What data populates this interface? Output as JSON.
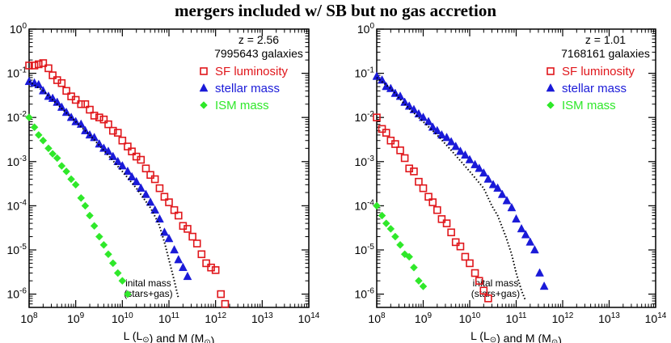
{
  "title": "mergers included w/ SB but no gas accretion",
  "colors": {
    "sf": "#e0161b",
    "stellar": "#1a1ad8",
    "ism": "#2fe82a",
    "axis": "#000000"
  },
  "chart_data": [
    {
      "type": "scatter",
      "id": "left",
      "xscale": "log",
      "yscale": "log",
      "xlim": [
        100000000.0,
        100000000000000.0
      ],
      "ylim": [
        5e-07,
        1
      ],
      "xlabel_parts": [
        "L (L",
        ") and M (M",
        ")"
      ],
      "xticks": [
        "10^8",
        "10^9",
        "10^10",
        "10^11",
        "10^12",
        "10^13",
        "10^14"
      ],
      "yticks": [
        "10^0",
        "10^-1",
        "10^-2",
        "10^-3",
        "10^-4",
        "10^-5",
        "10^-6"
      ],
      "info": {
        "redshift": "z = 2.56",
        "count": "7995643 galaxies"
      },
      "annotation": {
        "line1": "inital mass",
        "line2": "(stars+gas)"
      },
      "series": [
        {
          "name": "SF luminosity",
          "marker": "square",
          "color_key": "sf",
          "points": [
            [
              100000000.0,
              0.15
            ],
            [
              130000000.0,
              0.15
            ],
            [
              160000000.0,
              0.16
            ],
            [
              200000000.0,
              0.17
            ],
            [
              260000000.0,
              0.13
            ],
            [
              320000000.0,
              0.09
            ],
            [
              400000000.0,
              0.07
            ],
            [
              500000000.0,
              0.06
            ],
            [
              630000000.0,
              0.04
            ],
            [
              800000000.0,
              0.03
            ],
            [
              1000000000.0,
              0.025
            ],
            [
              1300000000.0,
              0.02
            ],
            [
              1600000000.0,
              0.02
            ],
            [
              2000000000.0,
              0.015
            ],
            [
              2500000000.0,
              0.011
            ],
            [
              3200000000.0,
              0.01
            ],
            [
              4000000000.0,
              0.009
            ],
            [
              5000000000.0,
              0.007
            ],
            [
              6300000000.0,
              0.005
            ],
            [
              8000000000.0,
              0.0045
            ],
            [
              10000000000.0,
              0.003
            ],
            [
              13000000000.0,
              0.0022
            ],
            [
              16000000000.0,
              0.0017
            ],
            [
              20000000000.0,
              0.0013
            ],
            [
              25000000000.0,
              0.0011
            ],
            [
              32000000000.0,
              0.0007
            ],
            [
              40000000000.0,
              0.0005
            ],
            [
              50000000000.0,
              0.0004
            ],
            [
              63000000000.0,
              0.00025
            ],
            [
              80000000000.0,
              0.00016
            ],
            [
              100000000000.0,
              0.00012
            ],
            [
              130000000000.0,
              8e-05
            ],
            [
              160000000000.0,
              6e-05
            ],
            [
              200000000000.0,
              3.5e-05
            ],
            [
              250000000000.0,
              3e-05
            ],
            [
              320000000000.0,
              2e-05
            ],
            [
              400000000000.0,
              1.4e-05
            ],
            [
              500000000000.0,
              8e-06
            ],
            [
              630000000000.0,
              5e-06
            ],
            [
              800000000000.0,
              4e-06
            ],
            [
              1000000000000.0,
              3.5e-06
            ],
            [
              1300000000000.0,
              1e-06
            ],
            [
              1600000000000.0,
              6e-07
            ]
          ]
        },
        {
          "name": "stellar mass",
          "marker": "triangle",
          "color_key": "stellar",
          "points": [
            [
              100000000.0,
              0.065
            ],
            [
              130000000.0,
              0.06
            ],
            [
              160000000.0,
              0.055
            ],
            [
              200000000.0,
              0.04
            ],
            [
              260000000.0,
              0.03
            ],
            [
              320000000.0,
              0.027
            ],
            [
              400000000.0,
              0.022
            ],
            [
              500000000.0,
              0.017
            ],
            [
              630000000.0,
              0.013
            ],
            [
              800000000.0,
              0.01
            ],
            [
              1000000000.0,
              0.008
            ],
            [
              1300000000.0,
              0.007
            ],
            [
              1600000000.0,
              0.005
            ],
            [
              2000000000.0,
              0.004
            ],
            [
              2500000000.0,
              0.0035
            ],
            [
              3200000000.0,
              0.0025
            ],
            [
              4000000000.0,
              0.002
            ],
            [
              5000000000.0,
              0.0017
            ],
            [
              6300000000.0,
              0.0013
            ],
            [
              8000000000.0,
              0.001
            ],
            [
              10000000000.0,
              0.0008
            ],
            [
              13000000000.0,
              0.0006
            ],
            [
              16000000000.0,
              0.00045
            ],
            [
              20000000000.0,
              0.00035
            ],
            [
              25000000000.0,
              0.00025
            ],
            [
              32000000000.0,
              0.00018
            ],
            [
              40000000000.0,
              0.00012
            ],
            [
              50000000000.0,
              8e-05
            ],
            [
              63000000000.0,
              5e-05
            ],
            [
              80000000000.0,
              2.5e-05
            ],
            [
              100000000000.0,
              1.8e-05
            ],
            [
              130000000000.0,
              1e-05
            ],
            [
              160000000000.0,
              6e-06
            ],
            [
              200000000000.0,
              4e-06
            ],
            [
              250000000000.0,
              2.5e-06
            ]
          ]
        },
        {
          "name": "ISM mass",
          "marker": "diamond",
          "color_key": "ism",
          "points": [
            [
              100000000.0,
              0.01
            ],
            [
              130000000.0,
              0.006
            ],
            [
              160000000.0,
              0.004
            ],
            [
              200000000.0,
              0.003
            ],
            [
              260000000.0,
              0.002
            ],
            [
              320000000.0,
              0.0015
            ],
            [
              400000000.0,
              0.0012
            ],
            [
              500000000.0,
              0.0008
            ],
            [
              630000000.0,
              0.0006
            ],
            [
              800000000.0,
              0.0004
            ],
            [
              1000000000.0,
              0.0003
            ],
            [
              1300000000.0,
              0.00015
            ],
            [
              1600000000.0,
              0.0001
            ],
            [
              2000000000.0,
              6e-05
            ],
            [
              2500000000.0,
              3.5e-05
            ],
            [
              3200000000.0,
              2e-05
            ],
            [
              4000000000.0,
              1.3e-05
            ],
            [
              5000000000.0,
              8e-06
            ],
            [
              6300000000.0,
              5e-06
            ],
            [
              8000000000.0,
              3e-06
            ],
            [
              10000000000.0,
              2e-06
            ],
            [
              13000000000.0,
              1e-06
            ]
          ]
        },
        {
          "name": "inital mass (stars+gas)",
          "marker": "dotted-line",
          "color_key": "axis",
          "points": [
            [
              100000000.0,
              0.065
            ],
            [
              200000000.0,
              0.04
            ],
            [
              400000000.0,
              0.02
            ],
            [
              1000000000.0,
              0.008
            ],
            [
              2000000000.0,
              0.004
            ],
            [
              4000000000.0,
              0.0018
            ],
            [
              10000000000.0,
              0.0006
            ],
            [
              20000000000.0,
              0.00025
            ],
            [
              40000000000.0,
              9e-05
            ],
            [
              60000000000.0,
              4e-05
            ],
            [
              80000000000.0,
              1.5e-05
            ],
            [
              100000000000.0,
              6e-06
            ],
            [
              130000000000.0,
              2e-06
            ],
            [
              160000000000.0,
              8e-07
            ]
          ]
        }
      ]
    },
    {
      "type": "scatter",
      "id": "right",
      "xscale": "log",
      "yscale": "log",
      "xlim": [
        100000000.0,
        100000000000000.0
      ],
      "ylim": [
        5e-07,
        1
      ],
      "xlabel_parts": [
        "L (L",
        ") and M (M",
        ")"
      ],
      "xticks": [
        "10^8",
        "10^9",
        "10^10",
        "10^11",
        "10^12",
        "10^13",
        "10^14"
      ],
      "yticks": [
        "10^0",
        "10^-1",
        "10^-2",
        "10^-3",
        "10^-4",
        "10^-5",
        "10^-6"
      ],
      "info": {
        "redshift": "z = 1.01",
        "count": "7168161 galaxies"
      },
      "annotation": {
        "line1": "inital mass",
        "line2": "(stars+gas)"
      },
      "series": [
        {
          "name": "SF luminosity",
          "marker": "square",
          "color_key": "sf",
          "points": [
            [
              100000000.0,
              0.01
            ],
            [
              130000000.0,
              0.0055
            ],
            [
              160000000.0,
              0.0045
            ],
            [
              200000000.0,
              0.003
            ],
            [
              250000000.0,
              0.0025
            ],
            [
              320000000.0,
              0.0018
            ],
            [
              400000000.0,
              0.0012
            ],
            [
              500000000.0,
              0.0007
            ],
            [
              630000000.0,
              0.0006
            ],
            [
              800000000.0,
              0.00035
            ],
            [
              1000000000.0,
              0.00025
            ],
            [
              1300000000.0,
              0.00016
            ],
            [
              1600000000.0,
              0.00012
            ],
            [
              2000000000.0,
              8e-05
            ],
            [
              2500000000.0,
              5e-05
            ],
            [
              3200000000.0,
              4e-05
            ],
            [
              4000000000.0,
              2.5e-05
            ],
            [
              5000000000.0,
              1.5e-05
            ],
            [
              6300000000.0,
              1.2e-05
            ],
            [
              8000000000.0,
              7e-06
            ],
            [
              10000000000.0,
              5e-06
            ],
            [
              13000000000.0,
              3e-06
            ],
            [
              16000000000.0,
              2e-06
            ],
            [
              20000000000.0,
              1.2e-06
            ],
            [
              25000000000.0,
              8e-07
            ]
          ]
        },
        {
          "name": "stellar mass",
          "marker": "triangle",
          "color_key": "stellar",
          "points": [
            [
              100000000.0,
              0.085
            ],
            [
              130000000.0,
              0.07
            ],
            [
              160000000.0,
              0.05
            ],
            [
              200000000.0,
              0.045
            ],
            [
              250000000.0,
              0.035
            ],
            [
              320000000.0,
              0.03
            ],
            [
              400000000.0,
              0.022
            ],
            [
              500000000.0,
              0.018
            ],
            [
              630000000.0,
              0.015
            ],
            [
              800000000.0,
              0.012
            ],
            [
              1000000000.0,
              0.01
            ],
            [
              1300000000.0,
              0.008
            ],
            [
              1600000000.0,
              0.006
            ],
            [
              2000000000.0,
              0.005
            ],
            [
              2500000000.0,
              0.004
            ],
            [
              3200000000.0,
              0.0035
            ],
            [
              4000000000.0,
              0.0028
            ],
            [
              5000000000.0,
              0.0022
            ],
            [
              6300000000.0,
              0.0017
            ],
            [
              8000000000.0,
              0.0014
            ],
            [
              10000000000.0,
              0.0011
            ],
            [
              13000000000.0,
              0.00085
            ],
            [
              16000000000.0,
              0.0007
            ],
            [
              20000000000.0,
              0.00055
            ],
            [
              25000000000.0,
              0.0004
            ],
            [
              32000000000.0,
              0.0003
            ],
            [
              40000000000.0,
              0.00025
            ],
            [
              50000000000.0,
              0.00018
            ],
            [
              63000000000.0,
              0.00013
            ],
            [
              80000000000.0,
              9e-05
            ],
            [
              100000000000.0,
              5e-05
            ],
            [
              130000000000.0,
              3e-05
            ],
            [
              160000000000.0,
              2.2e-05
            ],
            [
              200000000000.0,
              1.5e-05
            ],
            [
              250000000000.0,
              1e-05
            ],
            [
              320000000000.0,
              3e-06
            ],
            [
              400000000000.0,
              1.5e-06
            ]
          ]
        },
        {
          "name": "ISM mass",
          "marker": "diamond",
          "color_key": "ism",
          "points": [
            [
              100000000.0,
              0.0001
            ],
            [
              130000000.0,
              6e-05
            ],
            [
              160000000.0,
              4e-05
            ],
            [
              200000000.0,
              3e-05
            ],
            [
              250000000.0,
              2e-05
            ],
            [
              320000000.0,
              1.3e-05
            ],
            [
              400000000.0,
              8e-06
            ],
            [
              500000000.0,
              7e-06
            ],
            [
              630000000.0,
              4e-06
            ],
            [
              800000000.0,
              2e-06
            ],
            [
              1000000000.0,
              1.5e-06
            ]
          ]
        },
        {
          "name": "inital mass (stars+gas)",
          "marker": "dotted-line",
          "color_key": "axis",
          "points": [
            [
              100000000.0,
              0.08
            ],
            [
              200000000.0,
              0.045
            ],
            [
              400000000.0,
              0.02
            ],
            [
              1000000000.0,
              0.008
            ],
            [
              2000000000.0,
              0.004
            ],
            [
              4000000000.0,
              0.0018
            ],
            [
              10000000000.0,
              0.0006
            ],
            [
              20000000000.0,
              0.00025
            ],
            [
              30000000000.0,
              0.0001
            ],
            [
              40000000000.0,
              6e-05
            ],
            [
              60000000000.0,
              2e-05
            ],
            [
              80000000000.0,
              8e-06
            ],
            [
              100000000000.0,
              3e-06
            ],
            [
              130000000000.0,
              1.2e-06
            ],
            [
              160000000000.0,
              7e-07
            ]
          ]
        }
      ]
    }
  ]
}
